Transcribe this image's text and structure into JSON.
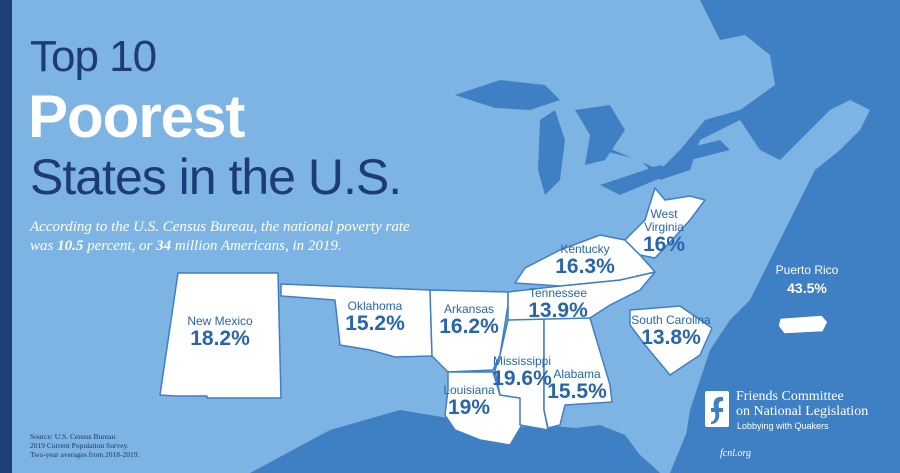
{
  "title": {
    "line1": "Top 10",
    "line2": "Poorest",
    "line3": "States in the U.S."
  },
  "subtitle": {
    "part1": "According to the U.S. Census Bureau, the national poverty rate was ",
    "rate": "10.5",
    "part2": " percent, or ",
    "count": "34",
    "part3": " million Americans, in 2019."
  },
  "states": [
    {
      "name": "New Mexico",
      "value": "18.2%"
    },
    {
      "name": "Oklahoma",
      "value": "15.2%"
    },
    {
      "name": "Arkansas",
      "value": "16.2%"
    },
    {
      "name": "Louisiana",
      "value": "19%"
    },
    {
      "name": "Mississippi",
      "value": "19.6%"
    },
    {
      "name": "Alabama",
      "value": "15.5%"
    },
    {
      "name": "Tennessee",
      "value": "13.9%"
    },
    {
      "name": "Kentucky",
      "value": "16.3%"
    },
    {
      "name": "West Virginia",
      "value": "16%"
    },
    {
      "name": "South Carolina",
      "value": "13.8%"
    },
    {
      "name": "Puerto Rico",
      "value": "43.5%"
    }
  ],
  "source": {
    "line1": "Source: U.S. Census Bureau",
    "line2": "2019 Current Population Survey.",
    "line3": "Two-year averages from 2018-2019."
  },
  "org": {
    "name_line1": "Friends Committee",
    "name_line2": "on National Legislation",
    "tagline": "Lobbying with Quakers",
    "url": "fcnl.org"
  },
  "colors": {
    "background": "#3f7fc4",
    "land": "#7eb4e4",
    "water": "#3f7fc4",
    "highlight": "#ffffff",
    "title_dark": "#1d3b78",
    "value_blue": "#2765ad"
  }
}
